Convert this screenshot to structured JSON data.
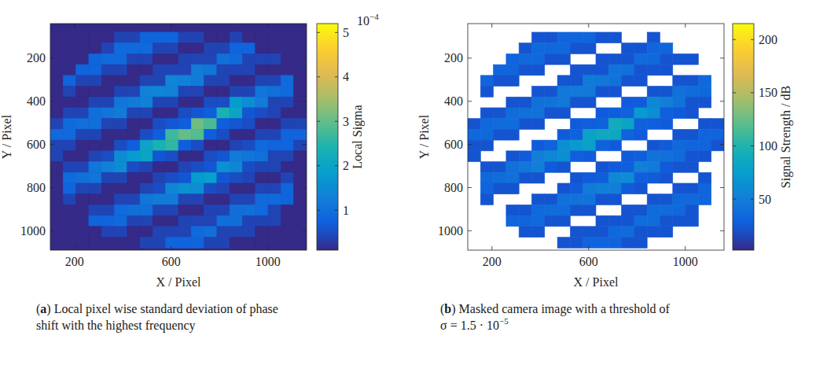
{
  "chart_data": [
    {
      "type": "heatmap",
      "label": "(a)",
      "caption": "Local pixel wise standard deviation of phase shift with the highest frequency",
      "xlabel": "X / Pixel",
      "ylabel": "Y / Pixel",
      "xlim": [
        100,
        1160
      ],
      "ylim": [
        1090,
        40
      ],
      "xticks": [
        200,
        600,
        1000
      ],
      "yticks": [
        200,
        400,
        600,
        800,
        1000
      ],
      "x_edges": [
        100,
        153,
        206,
        259,
        312,
        365,
        418,
        471,
        524,
        577,
        630,
        683,
        736,
        789,
        842,
        895,
        948,
        1001,
        1054,
        1107,
        1160
      ],
      "y_edges": [
        80,
        130,
        180,
        230,
        280,
        330,
        380,
        430,
        480,
        530,
        580,
        630,
        680,
        730,
        780,
        830,
        880,
        930,
        980,
        1030,
        1080
      ],
      "z": [
        [
          0.1,
          0.1,
          0.1,
          0.1,
          0.1,
          0.4,
          0.4,
          0.8,
          0.8,
          0.8,
          0.4,
          0.4,
          0.1,
          0.1,
          0.4,
          0.1,
          0.1,
          0.1,
          0.1,
          0.1
        ],
        [
          0.1,
          0.1,
          0.1,
          0.1,
          0.4,
          0.9,
          0.9,
          0.9,
          0.4,
          0.4,
          0.1,
          0.1,
          0.4,
          0.4,
          0.8,
          0.8,
          0.1,
          0.1,
          0.1,
          0.1
        ],
        [
          0.1,
          0.1,
          0.1,
          0.8,
          0.9,
          0.9,
          0.4,
          0.4,
          0.1,
          0.1,
          0.4,
          0.4,
          0.4,
          1.0,
          0.9,
          0.4,
          0.4,
          0.4,
          0.1,
          0.1
        ],
        [
          0.1,
          0.1,
          0.8,
          0.8,
          0.4,
          0.4,
          0.1,
          0.1,
          0.4,
          0.4,
          0.4,
          1.2,
          1.1,
          0.4,
          0.4,
          0.4,
          0.1,
          0.1,
          0.1,
          0.1
        ],
        [
          0.1,
          0.8,
          0.4,
          0.4,
          0.1,
          0.1,
          0.1,
          0.4,
          0.4,
          1.4,
          1.3,
          1.2,
          0.4,
          0.4,
          0.1,
          0.1,
          0.4,
          0.4,
          0.9,
          0.1
        ],
        [
          0.1,
          0.4,
          0.1,
          0.1,
          0.1,
          0.4,
          0.4,
          1.3,
          1.4,
          1.3,
          0.4,
          0.4,
          0.1,
          0.1,
          0.4,
          0.4,
          1.1,
          1.0,
          0.9,
          0.1
        ],
        [
          0.1,
          0.1,
          0.1,
          0.4,
          0.4,
          1.1,
          1.2,
          1.3,
          0.4,
          0.4,
          0.1,
          0.1,
          0.5,
          0.5,
          1.8,
          1.5,
          1.2,
          0.4,
          0.4,
          0.1
        ],
        [
          0.1,
          0.4,
          0.4,
          1.0,
          1.1,
          1.2,
          0.4,
          0.4,
          0.1,
          0.1,
          0.5,
          0.6,
          0.7,
          2.4,
          2.0,
          0.6,
          0.5,
          0.4,
          0.1,
          0.1
        ],
        [
          0.4,
          0.9,
          1.0,
          1.0,
          0.4,
          0.4,
          0.1,
          0.1,
          0.5,
          0.6,
          0.7,
          3.1,
          2.8,
          0.7,
          0.6,
          0.5,
          0.1,
          0.1,
          0.4,
          0.4
        ],
        [
          0.9,
          0.9,
          0.4,
          0.4,
          0.1,
          0.1,
          0.1,
          0.5,
          0.7,
          2.7,
          3.0,
          2.9,
          0.7,
          0.5,
          0.1,
          0.1,
          0.4,
          0.4,
          0.8,
          0.8
        ],
        [
          0.4,
          0.4,
          0.1,
          0.1,
          0.1,
          0.5,
          0.7,
          2.0,
          2.4,
          2.6,
          0.7,
          0.5,
          0.1,
          0.1,
          0.4,
          0.5,
          0.9,
          0.8,
          0.8,
          0.4
        ],
        [
          0.4,
          0.1,
          0.1,
          0.4,
          0.5,
          1.5,
          1.8,
          2.0,
          0.6,
          0.5,
          0.1,
          0.1,
          0.5,
          0.6,
          1.2,
          1.1,
          1.0,
          0.4,
          0.4,
          0.1
        ],
        [
          0.1,
          0.4,
          0.4,
          1.1,
          1.3,
          1.5,
          0.5,
          0.4,
          0.1,
          0.1,
          0.4,
          0.5,
          0.6,
          1.6,
          1.4,
          0.5,
          0.4,
          0.4,
          0.1,
          0.1
        ],
        [
          0.1,
          0.9,
          1.0,
          1.1,
          0.4,
          0.4,
          0.1,
          0.1,
          0.4,
          0.5,
          0.6,
          1.8,
          1.9,
          0.6,
          0.5,
          0.4,
          0.1,
          0.1,
          0.4,
          0.1
        ],
        [
          0.1,
          0.8,
          0.4,
          0.4,
          0.1,
          0.1,
          0.1,
          0.4,
          0.5,
          1.4,
          1.6,
          1.5,
          0.5,
          0.4,
          0.1,
          0.1,
          0.4,
          0.4,
          0.8,
          0.1
        ],
        [
          0.1,
          0.4,
          0.1,
          0.1,
          0.1,
          0.4,
          0.4,
          1.1,
          1.2,
          1.2,
          0.4,
          0.4,
          0.1,
          0.1,
          0.4,
          0.4,
          0.9,
          0.9,
          0.8,
          0.1
        ],
        [
          0.1,
          0.1,
          0.1,
          0.4,
          0.4,
          0.9,
          1.0,
          1.0,
          0.4,
          0.4,
          0.1,
          0.1,
          0.4,
          0.4,
          1.0,
          1.0,
          0.9,
          0.4,
          0.1,
          0.1
        ],
        [
          0.1,
          0.1,
          0.1,
          0.8,
          0.8,
          0.9,
          0.4,
          0.4,
          0.1,
          0.1,
          0.4,
          0.4,
          0.4,
          1.0,
          1.0,
          0.4,
          0.4,
          0.4,
          0.1,
          0.1
        ],
        [
          0.1,
          0.1,
          0.1,
          0.1,
          0.4,
          0.4,
          0.1,
          0.1,
          0.4,
          0.4,
          0.4,
          0.9,
          1.0,
          0.4,
          0.4,
          0.4,
          0.1,
          0.1,
          0.1,
          0.1
        ],
        [
          0.1,
          0.1,
          0.1,
          0.1,
          0.1,
          0.1,
          0.1,
          0.4,
          0.4,
          0.8,
          0.8,
          0.8,
          0.4,
          0.4,
          0.1,
          0.1,
          0.1,
          0.1,
          0.1,
          0.1
        ]
      ],
      "colorbar": {
        "label": "Local Sigma",
        "range": [
          0.1,
          5.2
        ],
        "ticks": [
          1,
          2,
          3,
          4,
          5
        ],
        "multiplier": {
          "text": "10",
          "superscript": "−4"
        }
      }
    },
    {
      "type": "heatmap",
      "label": "(b)",
      "caption": "Masked camera image with a threshold of",
      "caption_math": {
        "text": "σ = 1.5 · 10",
        "superscript": "−5"
      },
      "xlabel": "X / Pixel",
      "ylabel": "Y / Pixel",
      "xlim": [
        100,
        1160
      ],
      "ylim": [
        1090,
        40
      ],
      "xticks": [
        200,
        600,
        1000
      ],
      "yticks": [
        200,
        400,
        600,
        800,
        1000
      ],
      "x_edges": [
        100,
        153,
        206,
        259,
        312,
        365,
        418,
        471,
        524,
        577,
        630,
        683,
        736,
        789,
        842,
        895,
        948,
        1001,
        1054,
        1107,
        1160
      ],
      "y_edges": [
        80,
        130,
        180,
        230,
        280,
        330,
        380,
        430,
        480,
        530,
        580,
        630,
        680,
        730,
        780,
        830,
        880,
        930,
        980,
        1030,
        1080
      ],
      "z": [
        [
          null,
          null,
          null,
          null,
          null,
          22,
          22,
          32,
          32,
          32,
          22,
          22,
          null,
          null,
          22,
          null,
          null,
          null,
          null,
          null
        ],
        [
          null,
          null,
          null,
          null,
          22,
          35,
          35,
          35,
          22,
          22,
          null,
          null,
          22,
          22,
          32,
          32,
          null,
          null,
          null,
          null
        ],
        [
          null,
          null,
          null,
          32,
          35,
          35,
          22,
          22,
          null,
          null,
          22,
          22,
          22,
          37,
          35,
          22,
          22,
          22,
          null,
          null
        ],
        [
          null,
          null,
          32,
          32,
          22,
          22,
          null,
          null,
          22,
          22,
          22,
          42,
          40,
          22,
          22,
          22,
          null,
          null,
          null,
          null
        ],
        [
          null,
          32,
          22,
          22,
          null,
          null,
          null,
          22,
          22,
          47,
          45,
          42,
          22,
          22,
          null,
          null,
          22,
          22,
          35,
          null
        ],
        [
          null,
          22,
          null,
          null,
          null,
          22,
          22,
          45,
          47,
          45,
          22,
          22,
          null,
          null,
          22,
          22,
          40,
          37,
          35,
          null
        ],
        [
          null,
          null,
          null,
          22,
          22,
          40,
          42,
          45,
          22,
          22,
          null,
          null,
          25,
          25,
          57,
          50,
          42,
          22,
          22,
          null
        ],
        [
          null,
          22,
          22,
          37,
          40,
          42,
          22,
          22,
          null,
          null,
          25,
          28,
          30,
          72,
          62,
          28,
          25,
          22,
          null,
          null
        ],
        [
          22,
          35,
          37,
          37,
          22,
          22,
          null,
          null,
          25,
          28,
          30,
          90,
          82,
          30,
          28,
          25,
          null,
          null,
          22,
          22
        ],
        [
          35,
          35,
          22,
          22,
          null,
          null,
          null,
          25,
          30,
          80,
          87,
          85,
          30,
          25,
          null,
          null,
          22,
          22,
          32,
          32
        ],
        [
          22,
          22,
          null,
          null,
          null,
          25,
          30,
          62,
          72,
          77,
          30,
          25,
          null,
          null,
          22,
          25,
          35,
          32,
          32,
          22
        ],
        [
          22,
          null,
          null,
          22,
          25,
          50,
          57,
          62,
          28,
          25,
          null,
          null,
          25,
          28,
          42,
          40,
          37,
          22,
          22,
          null
        ],
        [
          null,
          22,
          22,
          40,
          45,
          50,
          25,
          22,
          null,
          null,
          22,
          25,
          28,
          52,
          47,
          25,
          22,
          22,
          null,
          null
        ],
        [
          null,
          35,
          37,
          40,
          22,
          22,
          null,
          null,
          22,
          25,
          28,
          57,
          60,
          28,
          25,
          22,
          null,
          null,
          22,
          null
        ],
        [
          null,
          32,
          22,
          22,
          null,
          null,
          null,
          22,
          25,
          47,
          52,
          50,
          25,
          22,
          null,
          null,
          22,
          22,
          32,
          null
        ],
        [
          null,
          22,
          null,
          null,
          null,
          22,
          22,
          40,
          42,
          42,
          22,
          22,
          null,
          null,
          22,
          22,
          35,
          35,
          32,
          null
        ],
        [
          null,
          null,
          null,
          22,
          22,
          35,
          37,
          37,
          22,
          22,
          null,
          null,
          22,
          22,
          37,
          37,
          35,
          22,
          null,
          null
        ],
        [
          null,
          null,
          null,
          32,
          32,
          35,
          22,
          22,
          null,
          null,
          22,
          22,
          22,
          37,
          37,
          22,
          22,
          22,
          null,
          null
        ],
        [
          null,
          null,
          null,
          null,
          22,
          22,
          null,
          null,
          22,
          22,
          22,
          35,
          37,
          22,
          22,
          22,
          null,
          null,
          null,
          null
        ],
        [
          null,
          null,
          null,
          null,
          null,
          null,
          null,
          22,
          22,
          32,
          32,
          32,
          22,
          22,
          null,
          null,
          null,
          null,
          null,
          null
        ]
      ],
      "colorbar": {
        "label": "Signal Strength / dB",
        "range": [
          2,
          215
        ],
        "ticks": [
          50,
          100,
          150,
          200
        ]
      }
    }
  ]
}
